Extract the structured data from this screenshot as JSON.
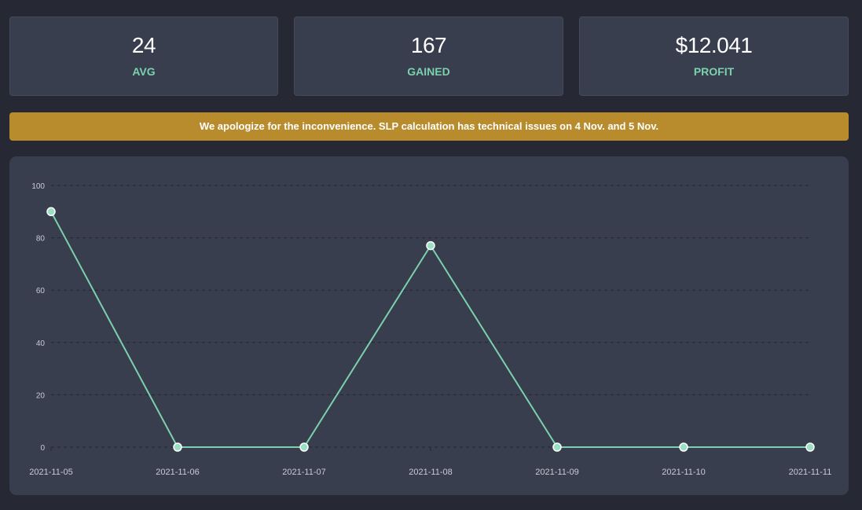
{
  "stats": [
    {
      "value": "24",
      "label": "AVG"
    },
    {
      "value": "167",
      "label": "GAINED"
    },
    {
      "value": "$12.041",
      "label": "PROFIT"
    }
  ],
  "notice": {
    "text": "We apologize for the inconvenience. SLP calculation has technical issues on 4 Nov. and 5 Nov."
  },
  "colors": {
    "accent": "#7bd1ad",
    "notice": "#b88c2d",
    "panel": "#393e4e",
    "background": "#262834"
  },
  "chart_data": {
    "type": "line",
    "x": [
      "2021-11-05",
      "2021-11-06",
      "2021-11-07",
      "2021-11-08",
      "2021-11-09",
      "2021-11-10",
      "2021-11-11"
    ],
    "series": [
      {
        "values": [
          90,
          0,
          0,
          77,
          0,
          0,
          0
        ]
      }
    ],
    "ylim": [
      0,
      100
    ],
    "yticks": [
      0,
      20,
      40,
      60,
      80,
      100
    ],
    "grid": true,
    "line_color": "#7bd1ad",
    "point_color": "#9be0c3"
  }
}
